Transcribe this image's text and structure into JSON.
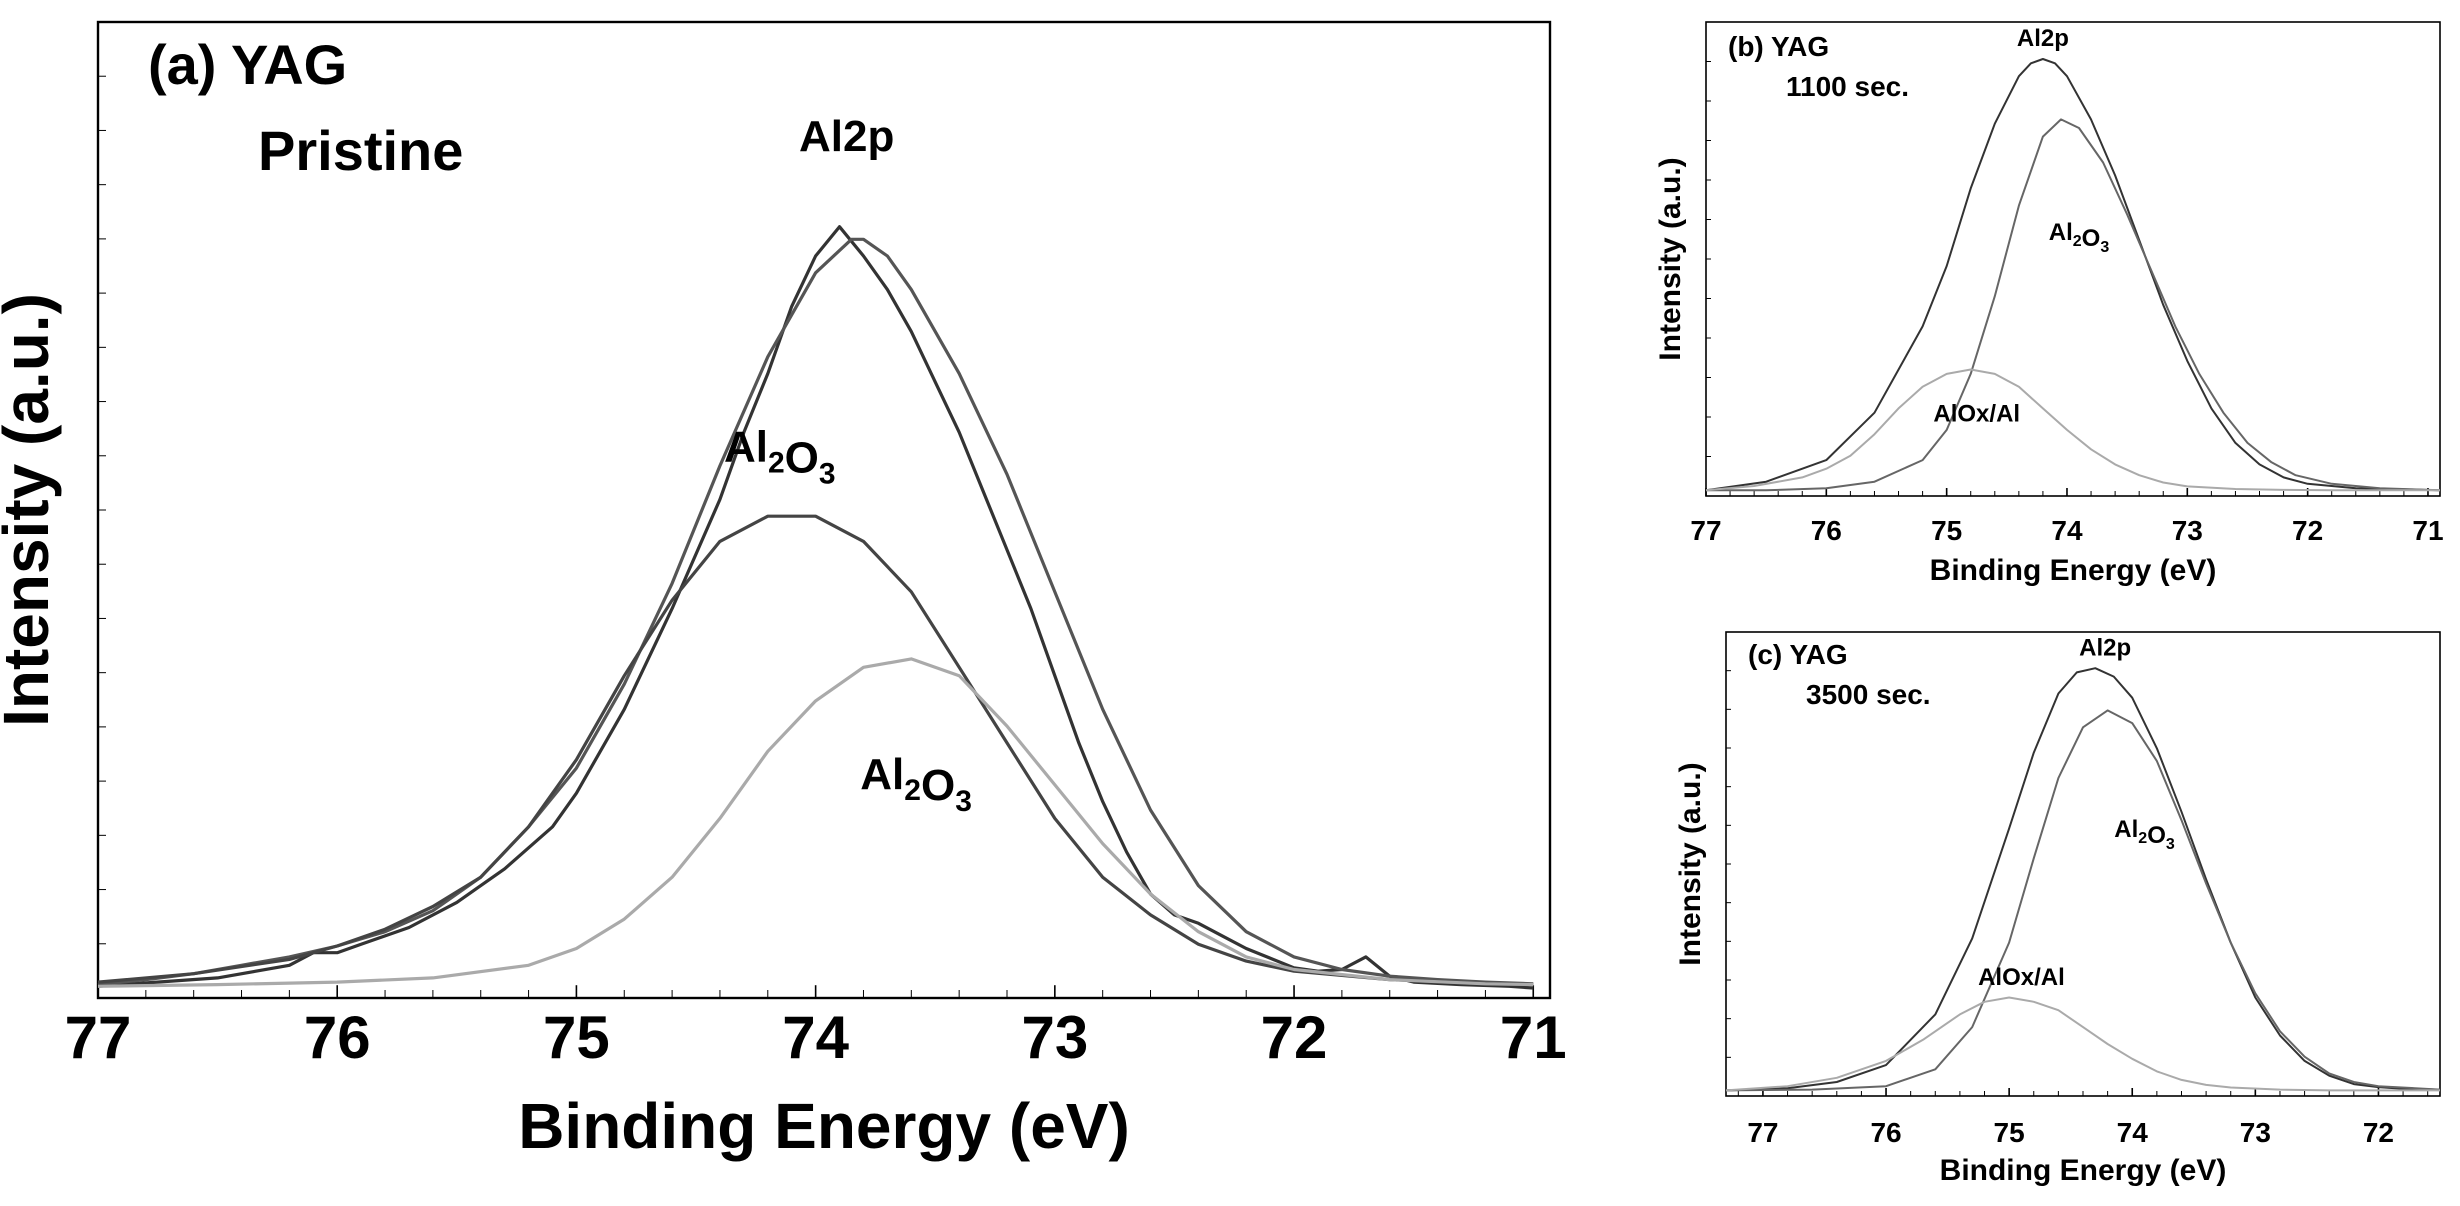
{
  "chart_data": [
    {
      "panel": "a",
      "type": "line",
      "panel_label": "(a) YAG",
      "panel_sublabel": "Pristine",
      "title": "",
      "xlabel": "Binding Energy (eV)",
      "ylabel": "Intensity (a.u.)",
      "xlim": [
        77.0,
        70.93
      ],
      "ylim": [
        0,
        1.0
      ],
      "x_reversed": true,
      "xticks": [
        77,
        76,
        75,
        74,
        73,
        72,
        71
      ],
      "grid": false,
      "annotations": [
        {
          "text": "Al2p",
          "x": 73.87,
          "y": 0.995
        },
        {
          "text": "Al2O3",
          "x": 74.15,
          "y": 0.625
        },
        {
          "text": "Al2O3",
          "x": 73.58,
          "y": 0.235
        }
      ],
      "series": [
        {
          "role": "envelope",
          "color": "#333333",
          "x": [
            77.0,
            76.5,
            76.2,
            76.1,
            76.0,
            75.9,
            75.8,
            75.7,
            75.5,
            75.3,
            75.1,
            75.0,
            74.8,
            74.6,
            74.4,
            74.3,
            74.2,
            74.1,
            74.0,
            73.9,
            73.8,
            73.7,
            73.6,
            73.5,
            73.4,
            73.3,
            73.2,
            73.1,
            73.0,
            72.9,
            72.8,
            72.7,
            72.6,
            72.5,
            72.4,
            72.3,
            72.2,
            72.0,
            71.9,
            71.8,
            71.7,
            71.6,
            71.5,
            71.3,
            71.1,
            71.0
          ],
          "y": [
            0.0,
            0.01,
            0.025,
            0.04,
            0.04,
            0.05,
            0.06,
            0.07,
            0.1,
            0.14,
            0.19,
            0.23,
            0.33,
            0.45,
            0.58,
            0.66,
            0.73,
            0.81,
            0.87,
            0.905,
            0.87,
            0.83,
            0.78,
            0.72,
            0.66,
            0.59,
            0.52,
            0.45,
            0.37,
            0.29,
            0.22,
            0.16,
            0.11,
            0.085,
            0.075,
            0.06,
            0.045,
            0.022,
            0.018,
            0.02,
            0.035,
            0.012,
            0.005,
            0.002,
            0.0,
            -0.002
          ]
        },
        {
          "role": "fit-total",
          "color": "#555555",
          "x": [
            77.0,
            76.8,
            76.6,
            76.4,
            76.2,
            76.0,
            75.8,
            75.6,
            75.4,
            75.2,
            75.0,
            74.8,
            74.6,
            74.4,
            74.2,
            74.0,
            73.85,
            73.8,
            73.7,
            73.6,
            73.4,
            73.2,
            73.0,
            72.8,
            72.6,
            72.4,
            72.2,
            72.0,
            71.8,
            71.6,
            71.4,
            71.2,
            71.0
          ],
          "y": [
            0.002,
            0.008,
            0.015,
            0.025,
            0.035,
            0.048,
            0.065,
            0.09,
            0.13,
            0.19,
            0.26,
            0.36,
            0.48,
            0.62,
            0.75,
            0.85,
            0.89,
            0.89,
            0.87,
            0.83,
            0.73,
            0.61,
            0.47,
            0.33,
            0.21,
            0.12,
            0.065,
            0.035,
            0.02,
            0.012,
            0.008,
            0.005,
            0.003
          ]
        },
        {
          "role": "Al2O3 component 1",
          "color": "#444444",
          "x": [
            77.0,
            76.6,
            76.2,
            76.0,
            75.8,
            75.6,
            75.4,
            75.2,
            75.0,
            74.8,
            74.6,
            74.4,
            74.2,
            74.0,
            73.8,
            73.6,
            73.4,
            73.2,
            73.0,
            72.8,
            72.6,
            72.4,
            72.2,
            72.0,
            71.6,
            71.2,
            71.0
          ],
          "y": [
            0.005,
            0.015,
            0.032,
            0.048,
            0.068,
            0.095,
            0.13,
            0.19,
            0.27,
            0.37,
            0.46,
            0.53,
            0.56,
            0.56,
            0.53,
            0.47,
            0.38,
            0.29,
            0.2,
            0.13,
            0.085,
            0.05,
            0.03,
            0.018,
            0.008,
            0.003,
            0.002
          ]
        },
        {
          "role": "Al2O3 component 2",
          "color": "#aaaaaa",
          "x": [
            77.0,
            76.5,
            76.0,
            75.6,
            75.2,
            75.0,
            74.8,
            74.6,
            74.4,
            74.2,
            74.0,
            73.8,
            73.6,
            73.4,
            73.2,
            73.0,
            72.8,
            72.6,
            72.4,
            72.2,
            72.0,
            71.6,
            71.2,
            71.0
          ],
          "y": [
            0.0,
            0.002,
            0.005,
            0.01,
            0.025,
            0.045,
            0.08,
            0.13,
            0.2,
            0.28,
            0.34,
            0.38,
            0.39,
            0.37,
            0.31,
            0.24,
            0.17,
            0.11,
            0.065,
            0.035,
            0.02,
            0.008,
            0.003,
            0.002
          ]
        }
      ]
    },
    {
      "panel": "b",
      "type": "line",
      "panel_label": "(b) YAG",
      "panel_sublabel": "1100 sec.",
      "title": "",
      "xlabel": "Binding Energy (eV)",
      "ylabel": "Intensity (a.u.)",
      "xlim": [
        77.0,
        70.9
      ],
      "ylim": [
        0,
        1.0
      ],
      "x_reversed": true,
      "xticks": [
        77,
        76,
        75,
        74,
        73,
        72,
        71
      ],
      "grid": false,
      "annotations": [
        {
          "text": "Al2p",
          "x": 74.2,
          "y": 1.03
        },
        {
          "text": "Al2O3",
          "x": 73.9,
          "y": 0.58
        },
        {
          "text": "AlOx/Al",
          "x": 74.75,
          "y": 0.16
        }
      ],
      "series": [
        {
          "role": "envelope",
          "color": "#333333",
          "x": [
            77.0,
            76.5,
            76.0,
            75.6,
            75.2,
            75.0,
            74.8,
            74.6,
            74.4,
            74.3,
            74.2,
            74.1,
            74.0,
            73.8,
            73.6,
            73.4,
            73.2,
            73.0,
            72.8,
            72.6,
            72.4,
            72.2,
            72.0,
            71.6,
            71.2,
            70.9
          ],
          "y": [
            0.0,
            0.02,
            0.07,
            0.18,
            0.38,
            0.52,
            0.7,
            0.85,
            0.96,
            0.99,
            1.0,
            0.99,
            0.96,
            0.86,
            0.73,
            0.58,
            0.43,
            0.3,
            0.19,
            0.11,
            0.06,
            0.03,
            0.015,
            0.005,
            0.002,
            0.0
          ]
        },
        {
          "role": "Al2O3",
          "color": "#666666",
          "x": [
            77.0,
            76.5,
            76.0,
            75.6,
            75.2,
            75.0,
            74.8,
            74.6,
            74.4,
            74.2,
            74.05,
            73.9,
            73.7,
            73.5,
            73.3,
            73.1,
            72.9,
            72.7,
            72.5,
            72.3,
            72.1,
            71.8,
            71.4,
            70.9
          ],
          "y": [
            0.0,
            0.0,
            0.005,
            0.02,
            0.07,
            0.14,
            0.27,
            0.45,
            0.66,
            0.82,
            0.86,
            0.84,
            0.76,
            0.64,
            0.51,
            0.38,
            0.27,
            0.18,
            0.11,
            0.065,
            0.035,
            0.015,
            0.005,
            0.0
          ]
        },
        {
          "role": "AlOx/Al",
          "color": "#aaaaaa",
          "x": [
            77.0,
            76.6,
            76.2,
            76.0,
            75.8,
            75.6,
            75.4,
            75.2,
            75.0,
            74.8,
            74.6,
            74.4,
            74.2,
            74.0,
            73.8,
            73.6,
            73.4,
            73.2,
            73.0,
            72.6,
            72.2,
            71.8,
            71.4,
            70.9
          ],
          "y": [
            0.0,
            0.01,
            0.03,
            0.05,
            0.08,
            0.13,
            0.19,
            0.24,
            0.27,
            0.28,
            0.27,
            0.24,
            0.19,
            0.14,
            0.095,
            0.06,
            0.035,
            0.018,
            0.009,
            0.003,
            0.001,
            0.0,
            0.0,
            0.0
          ]
        }
      ]
    },
    {
      "panel": "c",
      "type": "line",
      "panel_label": "(c) YAG",
      "panel_sublabel": "3500 sec.",
      "title": "",
      "xlabel": "Binding Energy (eV)",
      "ylabel": "Intensity (a.u.)",
      "xlim": [
        77.3,
        71.5
      ],
      "ylim": [
        0,
        1.0
      ],
      "x_reversed": true,
      "xticks": [
        77,
        76,
        75,
        74,
        73,
        72
      ],
      "grid": false,
      "annotations": [
        {
          "text": "Al2p",
          "x": 74.22,
          "y": 1.03
        },
        {
          "text": "Al2O3",
          "x": 73.9,
          "y": 0.6
        },
        {
          "text": "AlOx/Al",
          "x": 74.9,
          "y": 0.25
        }
      ],
      "series": [
        {
          "role": "envelope",
          "color": "#333333",
          "x": [
            77.3,
            76.8,
            76.4,
            76.0,
            75.6,
            75.3,
            75.0,
            74.8,
            74.6,
            74.45,
            74.3,
            74.15,
            74.0,
            73.8,
            73.6,
            73.4,
            73.2,
            73.0,
            72.8,
            72.6,
            72.4,
            72.2,
            72.0,
            71.8,
            71.5
          ],
          "y": [
            0.0,
            0.005,
            0.02,
            0.06,
            0.18,
            0.36,
            0.62,
            0.8,
            0.94,
            0.99,
            1.0,
            0.98,
            0.93,
            0.81,
            0.66,
            0.5,
            0.35,
            0.22,
            0.13,
            0.07,
            0.035,
            0.015,
            0.008,
            0.004,
            0.002
          ]
        },
        {
          "role": "Al2O3",
          "color": "#666666",
          "x": [
            77.3,
            76.6,
            76.0,
            75.6,
            75.3,
            75.0,
            74.8,
            74.6,
            74.4,
            74.2,
            74.0,
            73.8,
            73.6,
            73.4,
            73.2,
            73.0,
            72.8,
            72.6,
            72.4,
            72.2,
            72.0,
            71.5
          ],
          "y": [
            0.0,
            0.002,
            0.01,
            0.05,
            0.15,
            0.35,
            0.55,
            0.74,
            0.86,
            0.9,
            0.87,
            0.78,
            0.64,
            0.49,
            0.35,
            0.23,
            0.14,
            0.08,
            0.04,
            0.02,
            0.01,
            0.002
          ]
        },
        {
          "role": "AlOx/Al",
          "color": "#aaaaaa",
          "x": [
            77.3,
            76.8,
            76.4,
            76.0,
            75.7,
            75.4,
            75.2,
            75.0,
            74.8,
            74.6,
            74.4,
            74.2,
            74.0,
            73.8,
            73.6,
            73.4,
            73.2,
            72.8,
            72.4,
            72.0,
            71.5
          ],
          "y": [
            0.0,
            0.01,
            0.03,
            0.07,
            0.12,
            0.18,
            0.21,
            0.22,
            0.21,
            0.19,
            0.15,
            0.11,
            0.075,
            0.045,
            0.025,
            0.013,
            0.007,
            0.002,
            0.0,
            0.0,
            0.0
          ]
        }
      ]
    }
  ]
}
